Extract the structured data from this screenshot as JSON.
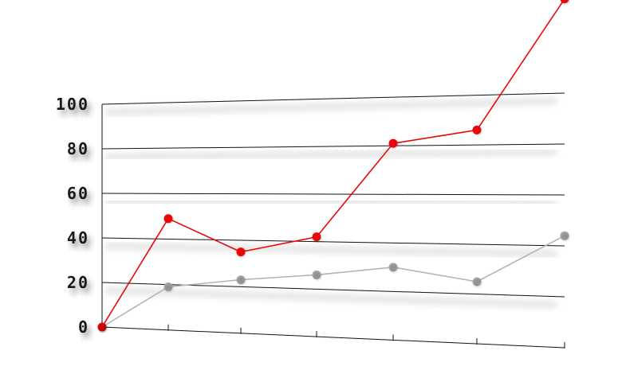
{
  "chart_data": {
    "type": "line",
    "title": "",
    "xlabel": "",
    "ylabel": "",
    "x": [
      0,
      1,
      2,
      3,
      4,
      5,
      6
    ],
    "ylim": [
      0,
      100
    ],
    "yticks": [
      0,
      20,
      40,
      60,
      80,
      100
    ],
    "ytick_labels": [
      "0",
      "20",
      "40",
      "60",
      "80",
      "100"
    ],
    "grid": "horizontal",
    "legend": "none",
    "style": "3d-perspective",
    "series": [
      {
        "color": "#e8080a",
        "values": [
          0,
          49,
          35,
          42,
          81,
          86,
          137
        ]
      },
      {
        "color": "#b4b4b4",
        "values": [
          0,
          19,
          23,
          26,
          30,
          25,
          44
        ]
      }
    ]
  }
}
